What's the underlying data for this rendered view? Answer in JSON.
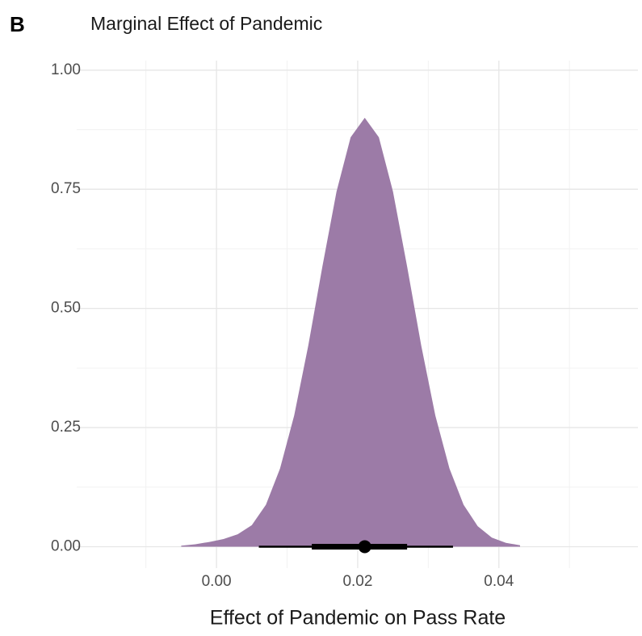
{
  "chart_data": {
    "type": "density",
    "tag": "B",
    "title": "Marginal Effect of Pandemic",
    "x_label": "Effect of Pandemic on Pass Rate",
    "color": "#9c7ba7",
    "x": [
      -0.005,
      -0.003,
      -0.001,
      0.001,
      0.003,
      0.005,
      0.007,
      0.009,
      0.011,
      0.013,
      0.015,
      0.017,
      0.019,
      0.021,
      0.023,
      0.025,
      0.027,
      0.029,
      0.031,
      0.033,
      0.035,
      0.037,
      0.039,
      0.041,
      0.043
    ],
    "values": [
      0.002,
      0.005,
      0.01,
      0.016,
      0.026,
      0.045,
      0.088,
      0.164,
      0.275,
      0.422,
      0.588,
      0.745,
      0.859,
      0.9,
      0.859,
      0.745,
      0.588,
      0.422,
      0.275,
      0.164,
      0.088,
      0.043,
      0.019,
      0.008,
      0.003
    ],
    "median": 0.021,
    "interval_inner": [
      0.0135,
      0.027
    ],
    "interval_outer": [
      0.006,
      0.0335
    ],
    "xlim": [
      -0.0198,
      0.0597
    ],
    "ylim": [
      -0.045,
      1.02
    ],
    "xticks": [
      {
        "value": 0,
        "label": "0.00"
      },
      {
        "value": 0.02,
        "label": "0.02"
      },
      {
        "value": 0.04,
        "label": "0.04"
      }
    ],
    "xminor": [
      -0.01,
      0.01,
      0.03,
      0.05
    ],
    "yticks": [
      {
        "value": 0,
        "label": "0.00"
      },
      0.25,
      {
        "value": 0.5,
        "label": "0.50"
      },
      0.75,
      {
        "value": 1,
        "label": "1.00"
      }
    ],
    "yminor": [
      0.125,
      0.375,
      0.625,
      0.875
    ],
    "grid": true
  }
}
